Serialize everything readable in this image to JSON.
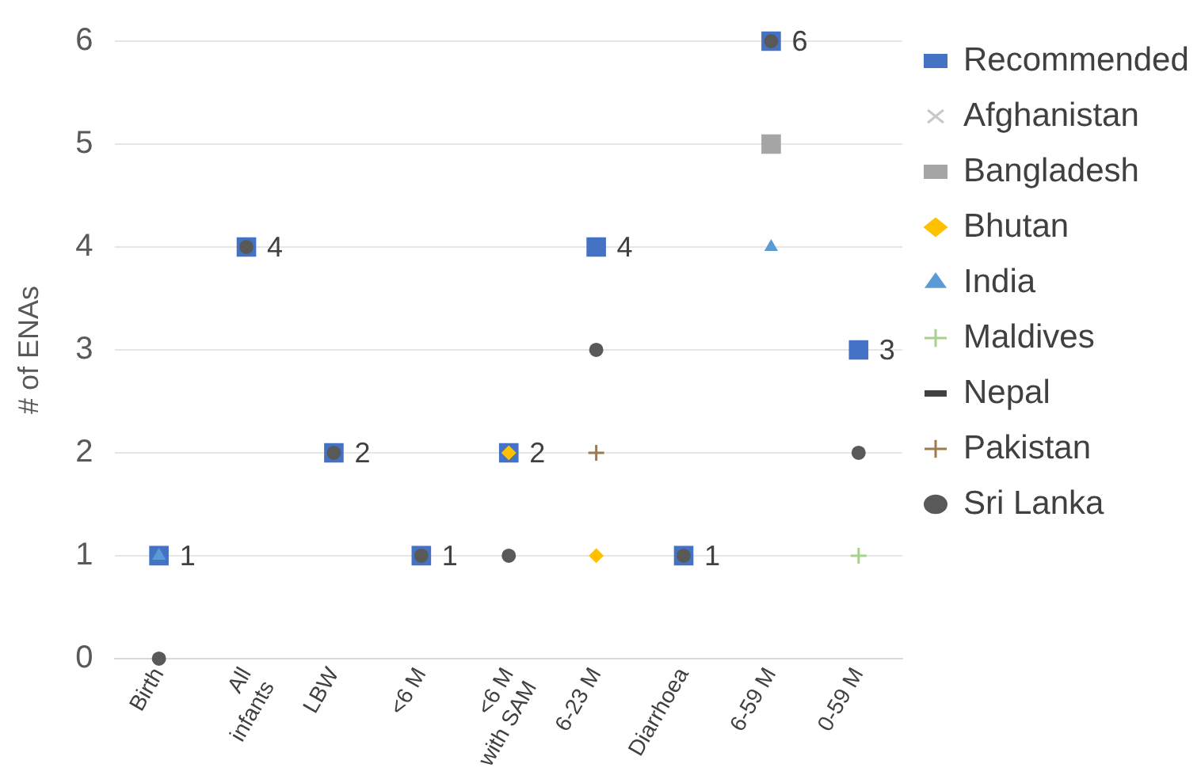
{
  "chart_data": {
    "type": "scatter",
    "ylabel": "# of ENAs",
    "categories": [
      "Birth",
      "All infants",
      "LBW",
      "<6 M",
      "<6 M with SAM",
      "6-23 M",
      "Diarrhoea",
      "6-59 M",
      "0-59 M"
    ],
    "ylim": [
      0,
      6
    ],
    "yticks": [
      0,
      1,
      2,
      3,
      4,
      5,
      6
    ],
    "grid": "y",
    "legend": "right",
    "series": [
      {
        "name": "Recommended",
        "color": "#4472c4",
        "marker": "square",
        "values": [
          1,
          4,
          2,
          1,
          2,
          4,
          1,
          6,
          3
        ],
        "value_labels": [
          "1",
          "4",
          "2",
          "1",
          "2",
          "4",
          "1",
          "6",
          "3"
        ]
      },
      {
        "name": "Afghanistan",
        "color": "#c8c8c8",
        "marker": "x",
        "values": [
          null,
          null,
          null,
          null,
          null,
          null,
          null,
          null,
          null
        ]
      },
      {
        "name": "Bangladesh",
        "color": "#a5a5a5",
        "marker": "square",
        "values": [
          null,
          null,
          null,
          null,
          null,
          null,
          null,
          5,
          null
        ]
      },
      {
        "name": "Bhutan",
        "color": "#ffc000",
        "marker": "diamond",
        "values": [
          null,
          null,
          null,
          null,
          2,
          1,
          null,
          null,
          null
        ]
      },
      {
        "name": "India",
        "color": "#5b9bd5",
        "marker": "triangle",
        "values": [
          1,
          null,
          null,
          null,
          null,
          null,
          null,
          4,
          null
        ]
      },
      {
        "name": "Maldives",
        "color": "#a9d18e",
        "marker": "cross",
        "values": [
          null,
          null,
          null,
          null,
          null,
          null,
          null,
          null,
          1
        ]
      },
      {
        "name": "Nepal",
        "color": "#404040",
        "values": [
          null,
          null,
          null,
          null,
          null,
          null,
          null,
          null,
          null
        ]
      },
      {
        "name": "Pakistan",
        "color": "#9e7b4f",
        "marker": "cross",
        "values": [
          null,
          null,
          null,
          null,
          null,
          2,
          null,
          null,
          null
        ]
      },
      {
        "name": "Sri Lanka",
        "color": "#595959",
        "marker": "circle",
        "values": [
          0,
          4,
          2,
          1,
          1,
          3,
          1,
          6,
          2
        ]
      }
    ]
  }
}
